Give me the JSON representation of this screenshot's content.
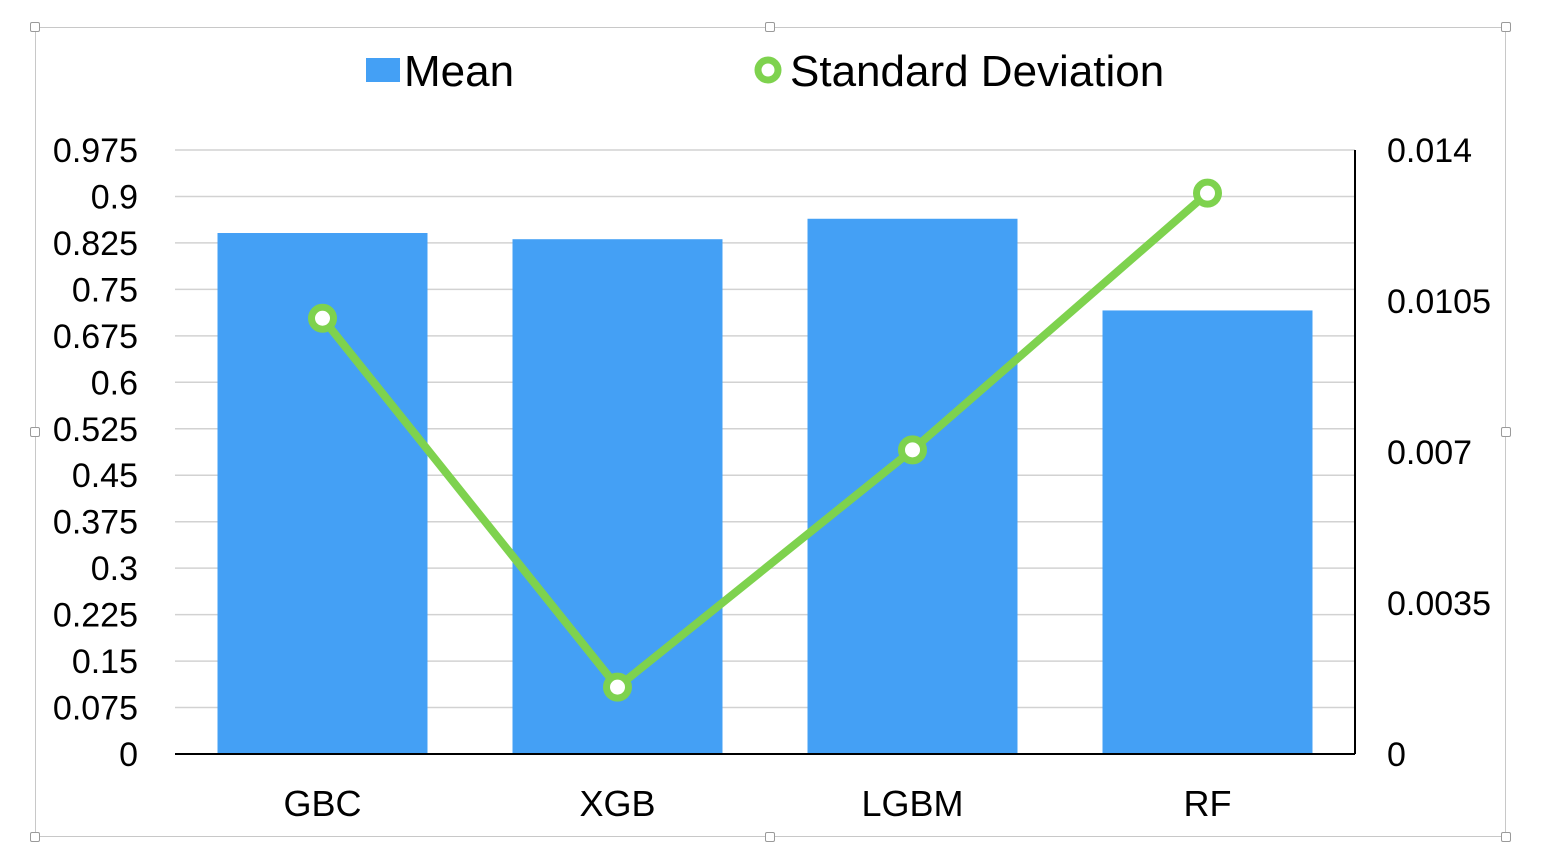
{
  "chart_data": {
    "type": "bar",
    "categories": [
      "GBC",
      "XGB",
      "LGBM",
      "RF"
    ],
    "series": [
      {
        "name": "Mean",
        "type": "bar",
        "axis": "left",
        "color": "#44a0f5",
        "values": [
          0.841,
          0.831,
          0.864,
          0.716
        ]
      },
      {
        "name": "Standard Deviation",
        "type": "line",
        "axis": "right",
        "color": "#7ed24e",
        "values": [
          0.0101,
          0.00155,
          0.00705,
          0.013
        ]
      }
    ],
    "left_axis": {
      "ylim": [
        0,
        0.975
      ],
      "ticks": [
        "0",
        "0.075",
        "0.15",
        "0.225",
        "0.3",
        "0.375",
        "0.45",
        "0.525",
        "0.6",
        "0.675",
        "0.75",
        "0.825",
        "0.9",
        "0.975"
      ]
    },
    "right_axis": {
      "ylim": [
        0,
        0.014
      ],
      "ticks": [
        "0",
        "0.0035",
        "0.007",
        "0.0105",
        "0.014"
      ]
    },
    "grid": true,
    "legend_position": "top",
    "gridline_color": "#d2d2d2"
  }
}
